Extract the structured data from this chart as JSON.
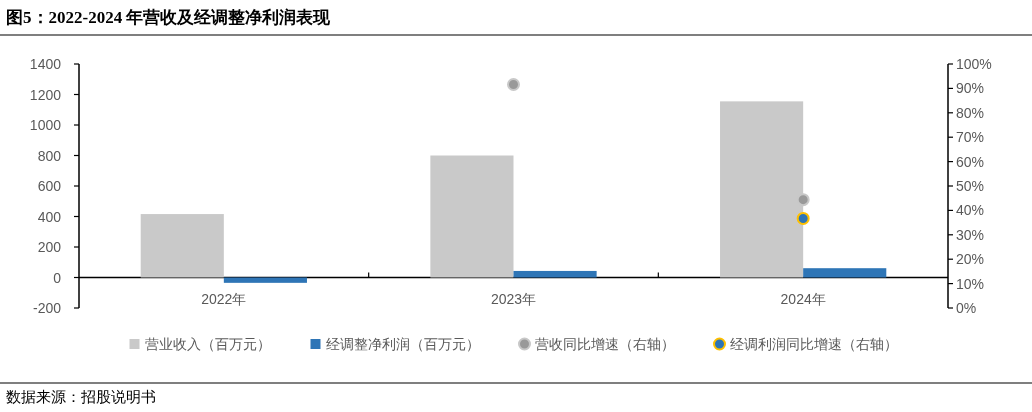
{
  "chart_data": {
    "type": "bar",
    "title": "图5：2022-2024 年营收及经调整净利润表现",
    "categories": [
      "2022年",
      "2023年",
      "2024年"
    ],
    "series": [
      {
        "name": "营业收入（百万元）",
        "color": "#c9c9c9",
        "values": [
          416,
          800,
          1155
        ]
      },
      {
        "name": "经调整净利润（百万元）",
        "color": "#2e75b6",
        "values": [
          -35,
          43,
          61
        ]
      },
      {
        "name": "营收同比增速（右轴）",
        "type": "scatter",
        "axis": "y2",
        "color": "#999999",
        "values": [
          null,
          91.6,
          44.4
        ]
      },
      {
        "name": "经调利润同比增速（右轴）",
        "type": "scatter",
        "axis": "y2",
        "color": "#2e75b6",
        "values": [
          null,
          null,
          36.7
        ]
      }
    ],
    "ylim": [
      -200,
      1400
    ],
    "yticks": [
      -200,
      0,
      200,
      400,
      600,
      800,
      1000,
      1200,
      1400
    ],
    "y2lim": [
      0,
      100
    ],
    "y2ticks": [
      {
        "value": 0,
        "label": "0%"
      },
      {
        "value": 10,
        "label": "10%"
      },
      {
        "value": 20,
        "label": "20%"
      },
      {
        "value": 30,
        "label": "30%"
      },
      {
        "value": 40,
        "label": "40%"
      },
      {
        "value": 50,
        "label": "50%"
      },
      {
        "value": 60,
        "label": "60%"
      },
      {
        "value": 70,
        "label": "70%"
      },
      {
        "value": 80,
        "label": "80%"
      },
      {
        "value": 90,
        "label": "90%"
      },
      {
        "value": 100,
        "label": "100%"
      }
    ],
    "marker": "circle",
    "legend": "bottom",
    "grid": false,
    "annotations": [
      "数据来源：招股说明书"
    ]
  }
}
